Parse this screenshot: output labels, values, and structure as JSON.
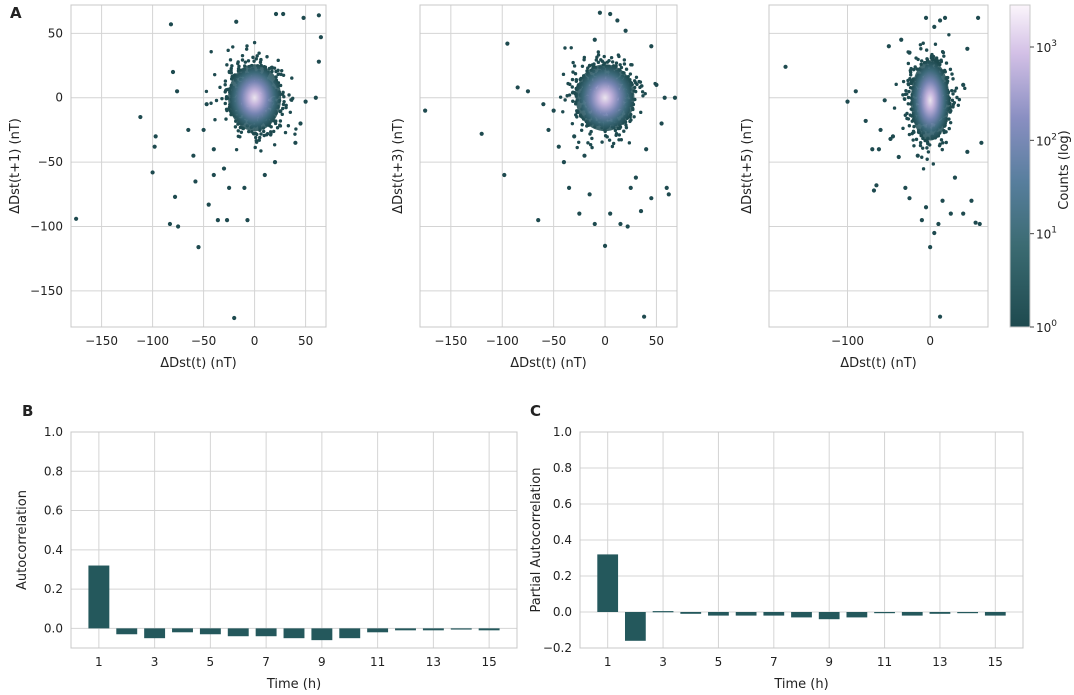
{
  "colors": {
    "dark": "#1e4a4f",
    "mid": "#4f7f97",
    "light": "#a59ad0",
    "pale": "#f4e7f5",
    "bar": "#24585c",
    "grid": "#d4d4d4"
  },
  "panels": {
    "A": "A",
    "B": "B",
    "C": "C"
  },
  "colorbar": {
    "label": "Counts (log)",
    "ticks": [
      {
        "base": "10",
        "exp": "0",
        "value": 0
      },
      {
        "base": "10",
        "exp": "1",
        "value": 1
      },
      {
        "base": "10",
        "exp": "2",
        "value": 2
      },
      {
        "base": "10",
        "exp": "3",
        "value": 3
      }
    ],
    "max_log": 3.45
  },
  "chart_data": [
    {
      "type": "scatter",
      "title": "",
      "xlabel": "ΔDst(t) (nT)",
      "ylabel": "ΔDst(t+1) (nT)",
      "xlim": [
        -180,
        70
      ],
      "ylim": [
        -178,
        72
      ],
      "xticks": [
        -150,
        -100,
        -50,
        0,
        50
      ],
      "yticks": [
        50,
        0,
        -50,
        -100,
        -150
      ],
      "show_yticklabels": true,
      "xtick_labels": [
        "−150",
        "−100",
        "−50",
        "0",
        "50"
      ],
      "ytick_labels": [
        "50",
        "0",
        "−50",
        "−100",
        "−150"
      ],
      "core_center": [
        0,
        0
      ],
      "core_sx": 10,
      "core_sy": 10,
      "outliers": [
        [
          -82,
          57
        ],
        [
          -18,
          59
        ],
        [
          -112,
          -15
        ],
        [
          -80,
          20
        ],
        [
          -76,
          5
        ],
        [
          -175,
          -94
        ],
        [
          -100,
          -58
        ],
        [
          -98,
          -38
        ],
        [
          -97,
          -30
        ],
        [
          -83,
          -98
        ],
        [
          -75,
          -100
        ],
        [
          -78,
          -77
        ],
        [
          -55,
          -116
        ],
        [
          -45,
          -83
        ],
        [
          -36,
          -95
        ],
        [
          -27,
          -95
        ],
        [
          -7,
          -95
        ],
        [
          -20,
          -171
        ],
        [
          21,
          65
        ],
        [
          28,
          65
        ],
        [
          48,
          62
        ],
        [
          63,
          64
        ],
        [
          65,
          47
        ],
        [
          63,
          28
        ],
        [
          60,
          0
        ],
        [
          50,
          -3
        ],
        [
          -47,
          -5
        ],
        [
          -50,
          -25
        ],
        [
          -60,
          -45
        ],
        [
          -40,
          -40
        ],
        [
          -30,
          -55
        ],
        [
          -58,
          -65
        ],
        [
          40,
          -35
        ],
        [
          45,
          -20
        ],
        [
          -65,
          -25
        ],
        [
          -40,
          -60
        ],
        [
          -25,
          -70
        ],
        [
          10,
          -60
        ],
        [
          -10,
          -70
        ],
        [
          20,
          -50
        ]
      ]
    },
    {
      "type": "scatter",
      "title": "",
      "xlabel": "ΔDst(t) (nT)",
      "ylabel": "ΔDst(t+3) (nT)",
      "xlim": [
        -180,
        70
      ],
      "ylim": [
        -178,
        72
      ],
      "xticks": [
        -150,
        -100,
        -50,
        0,
        50
      ],
      "yticks": [
        50,
        0,
        -50,
        -100,
        -150
      ],
      "show_yticklabels": false,
      "xtick_labels": [
        "−150",
        "−100",
        "−50",
        "0",
        "50"
      ],
      "ytick_labels": [
        "50",
        "0",
        "−50",
        "−100",
        "−150"
      ],
      "core_center": [
        0,
        0
      ],
      "core_sx": 11,
      "core_sy": 10,
      "outliers": [
        [
          -175,
          -10
        ],
        [
          -120,
          -28
        ],
        [
          -98,
          -60
        ],
        [
          -95,
          42
        ],
        [
          -85,
          8
        ],
        [
          -75,
          5
        ],
        [
          -65,
          -95
        ],
        [
          -55,
          -25
        ],
        [
          -40,
          -50
        ],
        [
          -35,
          -70
        ],
        [
          -25,
          -90
        ],
        [
          -20,
          -45
        ],
        [
          -10,
          -98
        ],
        [
          0,
          -115
        ],
        [
          5,
          -90
        ],
        [
          15,
          -98
        ],
        [
          22,
          -100
        ],
        [
          30,
          -62
        ],
        [
          35,
          -88
        ],
        [
          38,
          -170
        ],
        [
          45,
          -78
        ],
        [
          55,
          -20
        ],
        [
          60,
          -70
        ],
        [
          62,
          -75
        ],
        [
          68,
          0
        ],
        [
          58,
          0
        ],
        [
          45,
          40
        ],
        [
          -5,
          66
        ],
        [
          5,
          65
        ],
        [
          12,
          60
        ],
        [
          20,
          52
        ],
        [
          -10,
          45
        ],
        [
          -30,
          -30
        ],
        [
          -50,
          -10
        ],
        [
          40,
          -40
        ],
        [
          25,
          -70
        ],
        [
          -45,
          -38
        ],
        [
          -60,
          -5
        ],
        [
          50,
          10
        ],
        [
          -15,
          -75
        ]
      ]
    },
    {
      "type": "scatter",
      "title": "",
      "xlabel": "ΔDst(t) (nT)",
      "ylabel": "ΔDst(t+5) (nT)",
      "xlim": [
        -195,
        70
      ],
      "ylim": [
        -178,
        72
      ],
      "xticks": [
        -100,
        0
      ],
      "yticks": [
        50,
        0,
        -50,
        -100,
        -150
      ],
      "show_yticklabels": false,
      "xtick_labels": [
        "−100",
        "0"
      ],
      "ytick_labels": [
        "50",
        "0",
        "−50",
        "−100",
        "−150"
      ],
      "core_center": [
        0,
        -2
      ],
      "core_sx": 9,
      "core_sy": 12,
      "outliers": [
        [
          -175,
          24
        ],
        [
          -100,
          -3
        ],
        [
          -90,
          5
        ],
        [
          -78,
          -18
        ],
        [
          -70,
          -40
        ],
        [
          -62,
          -40
        ],
        [
          -55,
          -2
        ],
        [
          -45,
          -30
        ],
        [
          -48,
          -32
        ],
        [
          -38,
          -46
        ],
        [
          -30,
          -70
        ],
        [
          -25,
          -78
        ],
        [
          -15,
          -45
        ],
        [
          -10,
          -95
        ],
        [
          -5,
          -85
        ],
        [
          0,
          -116
        ],
        [
          5,
          -105
        ],
        [
          10,
          -98
        ],
        [
          15,
          -80
        ],
        [
          12,
          -170
        ],
        [
          25,
          -90
        ],
        [
          30,
          -62
        ],
        [
          40,
          -90
        ],
        [
          45,
          -42
        ],
        [
          50,
          -80
        ],
        [
          55,
          -97
        ],
        [
          60,
          -98
        ],
        [
          62,
          -35
        ],
        [
          58,
          62
        ],
        [
          12,
          60
        ],
        [
          -5,
          62
        ],
        [
          5,
          55
        ],
        [
          18,
          62
        ],
        [
          -35,
          45
        ],
        [
          -25,
          35
        ],
        [
          -50,
          40
        ],
        [
          45,
          38
        ],
        [
          40,
          10
        ],
        [
          -60,
          -25
        ],
        [
          -68,
          -72
        ],
        [
          -65,
          -68
        ]
      ]
    },
    {
      "type": "bar",
      "title": "",
      "xlabel": "Time (h)",
      "ylabel": "Autocorrelation",
      "categories": [
        1,
        2,
        3,
        4,
        5,
        6,
        7,
        8,
        9,
        10,
        11,
        12,
        13,
        14,
        15
      ],
      "xtick_labels": [
        "1",
        "3",
        "5",
        "7",
        "9",
        "11",
        "13",
        "15"
      ],
      "xtick_positions": [
        1,
        3,
        5,
        7,
        9,
        11,
        13,
        15
      ],
      "values": [
        0.32,
        -0.03,
        -0.05,
        -0.02,
        -0.03,
        -0.04,
        -0.04,
        -0.05,
        -0.06,
        -0.05,
        -0.02,
        -0.01,
        -0.01,
        0.0,
        -0.01
      ],
      "ylim": [
        -0.1,
        1.0
      ],
      "yticks": [
        0.0,
        0.2,
        0.4,
        0.6,
        0.8,
        1.0
      ],
      "ytick_labels": [
        "0.0",
        "0.2",
        "0.4",
        "0.6",
        "0.8",
        "1.0"
      ]
    },
    {
      "type": "bar",
      "title": "",
      "xlabel": "Time (h)",
      "ylabel": "Partial Autocorrelation",
      "categories": [
        1,
        2,
        3,
        4,
        5,
        6,
        7,
        8,
        9,
        10,
        11,
        12,
        13,
        14,
        15
      ],
      "xtick_labels": [
        "1",
        "3",
        "5",
        "7",
        "9",
        "11",
        "13",
        "15"
      ],
      "xtick_positions": [
        1,
        3,
        5,
        7,
        9,
        11,
        13,
        15
      ],
      "values": [
        0.32,
        -0.16,
        0.005,
        -0.01,
        -0.02,
        -0.02,
        -0.02,
        -0.03,
        -0.04,
        -0.03,
        -0.005,
        -0.02,
        -0.01,
        -0.005,
        -0.02
      ],
      "ylim": [
        -0.2,
        1.0
      ],
      "yticks": [
        -0.2,
        0.0,
        0.2,
        0.4,
        0.6,
        0.8,
        1.0
      ],
      "ytick_labels": [
        "−0.2",
        "0.0",
        "0.2",
        "0.4",
        "0.6",
        "0.8",
        "1.0"
      ]
    }
  ]
}
